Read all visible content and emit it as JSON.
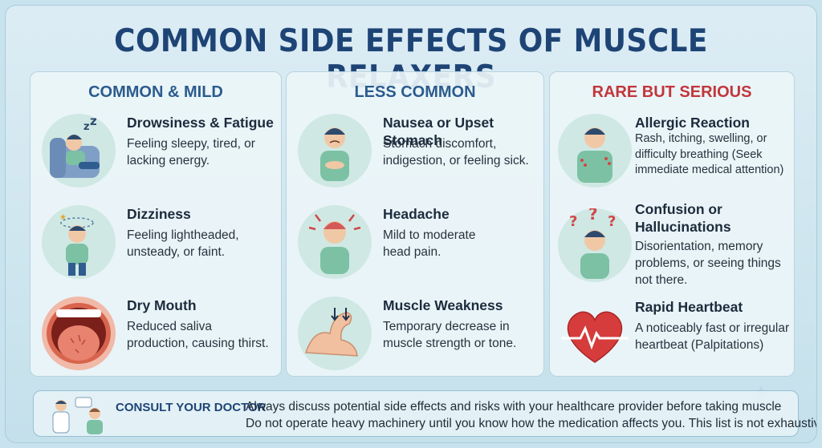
{
  "title": "COMMON SIDE EFFECTS OF MUSCLE RELAXERS",
  "columns": [
    {
      "heading": "COMMON & MILD",
      "items": [
        {
          "name": "Drowsiness & Fatigue",
          "desc_lines": [
            "Feeling sleepy, tired, or",
            "lacking energy."
          ],
          "icon": "sleepy-person-icon"
        },
        {
          "name": "Dizziness",
          "desc_lines": [
            "Feeling lightheaded,",
            "unsteady, or faint."
          ],
          "icon": "dizzy-person-icon"
        },
        {
          "name": "Dry Mouth",
          "desc_lines": [
            "Reduced saliva",
            "production, causing thirst."
          ],
          "icon": "open-mouth-icon"
        }
      ]
    },
    {
      "heading": "LESS COMMON",
      "items": [
        {
          "name": "Nausea or Upset Stomach",
          "desc_lines": [
            "Stomach discomfort,",
            "indigestion, or feeling sick."
          ],
          "icon": "nauseous-person-icon"
        },
        {
          "name": "Headache",
          "desc_lines": [
            "Mild to moderate",
            "head pain."
          ],
          "icon": "headache-person-icon"
        },
        {
          "name": "Muscle Weakness",
          "desc_lines": [
            "Temporary decrease in",
            "muscle strength or tone."
          ],
          "icon": "weak-arm-icon"
        }
      ]
    },
    {
      "heading": "RARE BUT SERIOUS",
      "items": [
        {
          "name": "Allergic Reaction",
          "desc_lines": [
            "Rash, itching, swelling, or",
            "difficulty breathing (Seek",
            "immediate medical attention)"
          ],
          "icon": "rash-person-icon"
        },
        {
          "name_lines": [
            "Confusion or",
            "Hallucinations"
          ],
          "desc_lines": [
            "Disorientation, memory",
            "problems, or seeing things",
            "not there."
          ],
          "icon": "confused-person-icon"
        },
        {
          "name": "Rapid Heartbeat",
          "desc_lines": [
            "A noticeably fast or irregular",
            "heartbeat (Palpitations)"
          ],
          "icon": "heartbeat-icon"
        }
      ]
    }
  ],
  "consult": {
    "label": "CONSULT YOUR DOCTOR",
    "line1": "Always discuss potential side effects and risks with your healthcare provider before taking muscle",
    "line2": "Do not operate heavy machinery until you know how the medication affects you. This list is not exhaustive.",
    "icon": "doctor-patient-icon"
  },
  "colors": {
    "title": "#1e4476",
    "heading_blue": "#2b5b8e",
    "heading_red": "#c2363b"
  }
}
